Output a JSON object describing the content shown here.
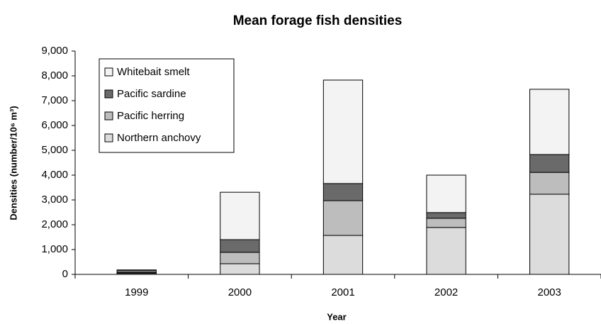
{
  "chart_data": {
    "type": "stacked-bar",
    "title": "Mean forage fish densities",
    "x_label": "Year",
    "y_label": "Densities (number/10⁶ m³)",
    "categories": [
      "1999",
      "2000",
      "2001",
      "2002",
      "2003"
    ],
    "series": [
      {
        "name": "Northern anchovy",
        "color": "#dcdcdc",
        "values": [
          40,
          430,
          1570,
          1890,
          3230
        ]
      },
      {
        "name": "Pacific herring",
        "color": "#bdbdbd",
        "values": [
          30,
          460,
          1400,
          370,
          880
        ]
      },
      {
        "name": "Pacific sardine",
        "color": "#6a6a6a",
        "values": [
          100,
          510,
          690,
          230,
          720
        ]
      },
      {
        "name": "Whitebait smelt",
        "color": "#f3f3f3",
        "values": [
          10,
          1910,
          4170,
          1510,
          2630
        ]
      }
    ],
    "ylim": [
      0,
      9000
    ],
    "yticks": [
      0,
      {
        "value": 1000,
        "label": "1,000"
      },
      {
        "value": 2000,
        "label": "2,000"
      },
      {
        "value": 3000,
        "label": "3,000"
      },
      {
        "value": 4000,
        "label": "4,000"
      },
      {
        "value": 5000,
        "label": "5,000"
      },
      {
        "value": 6000,
        "label": "6,000"
      },
      {
        "value": 7000,
        "label": "7,000"
      },
      {
        "value": 8000,
        "label": "8,000"
      },
      {
        "value": 9000,
        "label": "9,000"
      }
    ],
    "legend": "top-left"
  }
}
